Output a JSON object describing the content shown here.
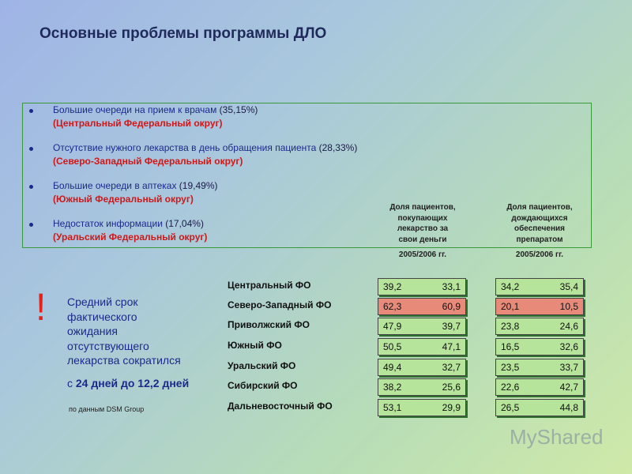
{
  "title": "Основные проблемы программы ДЛО",
  "bullets": [
    {
      "text": "Большие очереди на прием к врачам",
      "pct": "(35,15%)",
      "region": "(Центральный Федеральный округ)"
    },
    {
      "text": "Отсутствие нужного лекарства в день обращения пациента",
      "pct": "(28,33%)",
      "region": "(Северо-Западный Федеральный округ)"
    },
    {
      "text": "Большие очереди в аптеках",
      "pct": "(19,49%)",
      "region": "(Южный Федеральный округ)"
    },
    {
      "text": "Недостаток информации",
      "pct": "(17,04%)",
      "region": "(Уральский Федеральный округ)"
    }
  ],
  "columns": [
    {
      "header": [
        "Доля пациентов,",
        "покупающих",
        "лекарство за",
        "свои деньги"
      ],
      "period": "2005/2006 гг."
    },
    {
      "header": [
        "Доля пациентов,",
        "дождающихся",
        "обеспечения",
        "препаратом"
      ],
      "period": "2005/2006 гг."
    }
  ],
  "regions": [
    "Центральный ФО",
    "Северо-Западный ФО",
    "Приволжский ФО",
    "Южный ФО",
    "Уральский ФО",
    "Сибирский ФО",
    "Дальневосточный ФО"
  ],
  "tables": [
    {
      "rows": [
        [
          "39,2",
          "33,1"
        ],
        [
          "62,3",
          "60,9"
        ],
        [
          "47,9",
          "39,7"
        ],
        [
          "50,5",
          "47,1"
        ],
        [
          "49,4",
          "32,7"
        ],
        [
          "38,2",
          "25,6"
        ],
        [
          "53,1",
          "29,9"
        ]
      ],
      "highlight": [
        false,
        true,
        false,
        false,
        false,
        false,
        false
      ]
    },
    {
      "rows": [
        [
          "34,2",
          "35,4"
        ],
        [
          "20,1",
          "10,5"
        ],
        [
          "23,8",
          "24,6"
        ],
        [
          "16,5",
          "32,6"
        ],
        [
          "23,5",
          "33,7"
        ],
        [
          "22,6",
          "42,7"
        ],
        [
          "26,5",
          "44,8"
        ]
      ],
      "highlight": [
        false,
        true,
        false,
        false,
        false,
        false,
        false
      ]
    }
  ],
  "note": {
    "mark": "!",
    "lines": [
      "Средний срок",
      "фактического",
      "ожидания",
      "отсутствующего",
      "лекарства сократился"
    ],
    "prefix": "с",
    "emphasis": "24 дней до 12,2 дней",
    "source": "по данным DSM Group"
  },
  "watermark": "MyShared"
}
